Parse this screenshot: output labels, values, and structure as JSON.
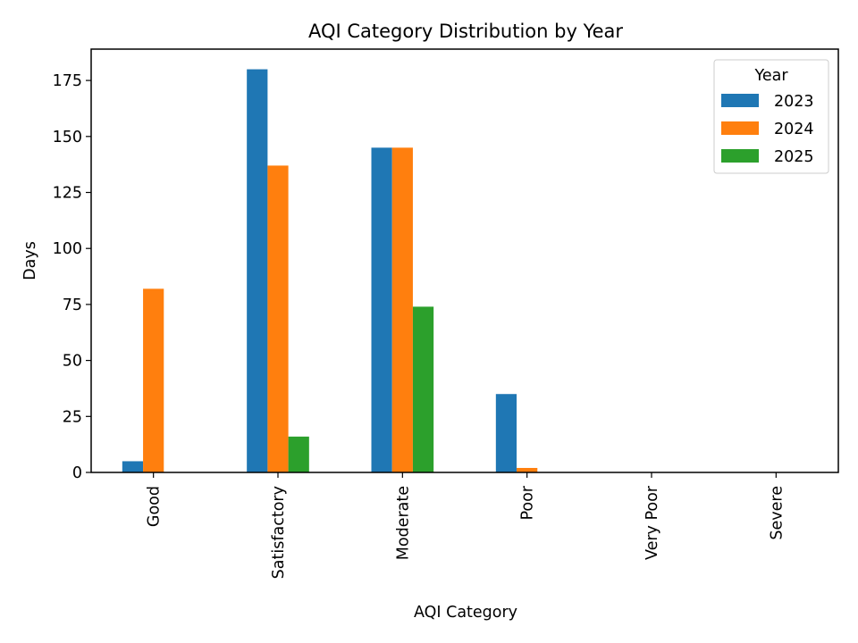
{
  "chart_data": {
    "type": "bar",
    "title": "AQI Category Distribution by Year",
    "xlabel": "AQI Category",
    "ylabel": "Days",
    "categories": [
      "Good",
      "Satisfactory",
      "Moderate",
      "Poor",
      "Very Poor",
      "Severe"
    ],
    "series": [
      {
        "name": "2023",
        "color": "#1f77b4",
        "values": [
          5,
          180,
          145,
          35,
          0,
          0
        ]
      },
      {
        "name": "2024",
        "color": "#ff7f0e",
        "values": [
          82,
          137,
          145,
          2,
          0,
          0
        ]
      },
      {
        "name": "2025",
        "color": "#2ca02c",
        "values": [
          0,
          16,
          74,
          0,
          0,
          0
        ]
      }
    ],
    "ylim": [
      0,
      189
    ],
    "yticks": [
      "0",
      "25",
      "50",
      "75",
      "100",
      "125",
      "150",
      "175"
    ],
    "legend": {
      "title": "Year",
      "placement": "top-right"
    },
    "grid": false
  }
}
